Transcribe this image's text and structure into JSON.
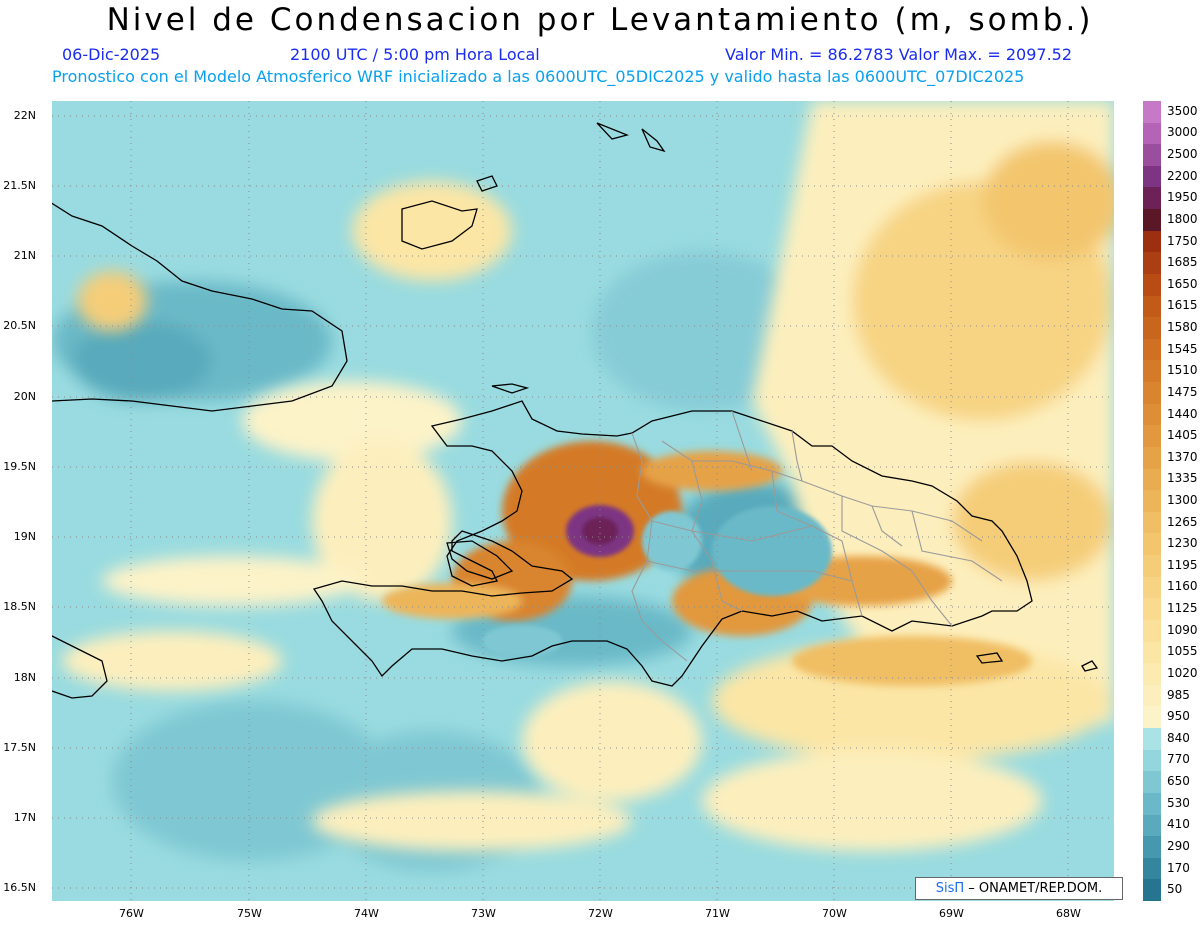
{
  "header": {
    "title": "Nivel de Condensacion por Levantamiento (m, somb.)",
    "date": "06-Dic-2025",
    "time": "2100 UTC / 5:00 pm Hora Local",
    "min_max": "Valor Min. = 86.2783   Valor Max. = 2097.52",
    "forecast_note": "Pronostico con el Modelo Atmosferico WRF inicializado a las 0600UTC_05DIC2025 y valido hasta las  0600UTC_07DIC2025"
  },
  "axes": {
    "lat_labels": [
      "22N",
      "21.5N",
      "21N",
      "20.5N",
      "20N",
      "19.5N",
      "19N",
      "18.5N",
      "18N",
      "17.5N",
      "17N",
      "16.5N"
    ],
    "lon_labels": [
      "76W",
      "75W",
      "74W",
      "73W",
      "72W",
      "71W",
      "70W",
      "69W",
      "68W"
    ]
  },
  "legend": {
    "levels": [
      "3500",
      "3000",
      "2500",
      "2200",
      "1950",
      "1800",
      "1750",
      "1685",
      "1650",
      "1615",
      "1580",
      "1545",
      "1510",
      "1475",
      "1440",
      "1405",
      "1370",
      "1335",
      "1300",
      "1265",
      "1230",
      "1195",
      "1160",
      "1125",
      "1090",
      "1055",
      "1020",
      "985",
      "950",
      "840",
      "770",
      "650",
      "530",
      "410",
      "290",
      "170",
      "50"
    ],
    "colors": [
      "#c679c7",
      "#b463b6",
      "#9a4f9e",
      "#7d3583",
      "#6c2257",
      "#5a1726",
      "#9c2f0f",
      "#ab3e12",
      "#b84c14",
      "#c25a18",
      "#c9661e",
      "#cf7022",
      "#d47a28",
      "#d9842e",
      "#de8e36",
      "#e2983e",
      "#e6a246",
      "#eaac50",
      "#edb55a",
      "#f0be64",
      "#f3c66e",
      "#f5cd79",
      "#f7d484",
      "#f9da8f",
      "#fae09a",
      "#fbe6a6",
      "#fcebb1",
      "#fdefbd",
      "#fdf3c8",
      "#a9e3e6",
      "#94d6dd",
      "#7fc8d3",
      "#6bb9c8",
      "#58aabc",
      "#4598ad",
      "#34869e",
      "#257490"
    ]
  },
  "credit": {
    "logo": "SisΠ",
    "text": "– ONAMET/REP.DOM."
  }
}
